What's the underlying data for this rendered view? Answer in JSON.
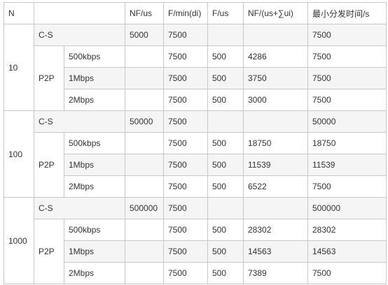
{
  "header": {
    "n": "N",
    "type": "",
    "nf_us": "NF/us",
    "f_min_di": "F/min(di)",
    "f_us": "F/us",
    "nf_sum": "NF/(us+∑ui)",
    "min_time": "最小分发时间/s"
  },
  "groups": [
    {
      "n": "10",
      "cs": {
        "label": "C-S",
        "nf_us": "5000",
        "f_min_di": "7500",
        "f_us": "",
        "nf_sum": "",
        "min_time": "7500"
      },
      "p2p_label": "P2P",
      "p2p_rows": [
        {
          "rate": "500kbps",
          "nf_us": "",
          "f_min_di": "7500",
          "f_us": "500",
          "nf_sum": "4286",
          "min_time": "7500"
        },
        {
          "rate": "1Mbps",
          "nf_us": "",
          "f_min_di": "7500",
          "f_us": "500",
          "nf_sum": "3750",
          "min_time": "7500"
        },
        {
          "rate": "2Mbps",
          "nf_us": "",
          "f_min_di": "7500",
          "f_us": "500",
          "nf_sum": "3000",
          "min_time": "7500"
        }
      ]
    },
    {
      "n": "100",
      "cs": {
        "label": "C-S",
        "nf_us": "50000",
        "f_min_di": "7500",
        "f_us": "",
        "nf_sum": "",
        "min_time": "50000"
      },
      "p2p_label": "P2P",
      "p2p_rows": [
        {
          "rate": "500kbps",
          "nf_us": "",
          "f_min_di": "7500",
          "f_us": "500",
          "nf_sum": "18750",
          "min_time": "18750"
        },
        {
          "rate": "1Mbps",
          "nf_us": "",
          "f_min_di": "7500",
          "f_us": "500",
          "nf_sum": "11539",
          "min_time": "11539"
        },
        {
          "rate": "2Mbps",
          "nf_us": "",
          "f_min_di": "7500",
          "f_us": "500",
          "nf_sum": "6522",
          "min_time": "7500"
        }
      ]
    },
    {
      "n": "1000",
      "cs": {
        "label": "C-S",
        "nf_us": "500000",
        "f_min_di": "7500",
        "f_us": "",
        "nf_sum": "",
        "min_time": "500000"
      },
      "p2p_label": "P2P",
      "p2p_rows": [
        {
          "rate": "500kbps",
          "nf_us": "",
          "f_min_di": "7500",
          "f_us": "500",
          "nf_sum": "28302",
          "min_time": "28302"
        },
        {
          "rate": "1Mbps",
          "nf_us": "",
          "f_min_di": "7500",
          "f_us": "500",
          "nf_sum": "14563",
          "min_time": "14563"
        },
        {
          "rate": "2Mbps",
          "nf_us": "",
          "f_min_di": "7500",
          "f_us": "500",
          "nf_sum": "7389",
          "min_time": "7500"
        }
      ]
    }
  ]
}
